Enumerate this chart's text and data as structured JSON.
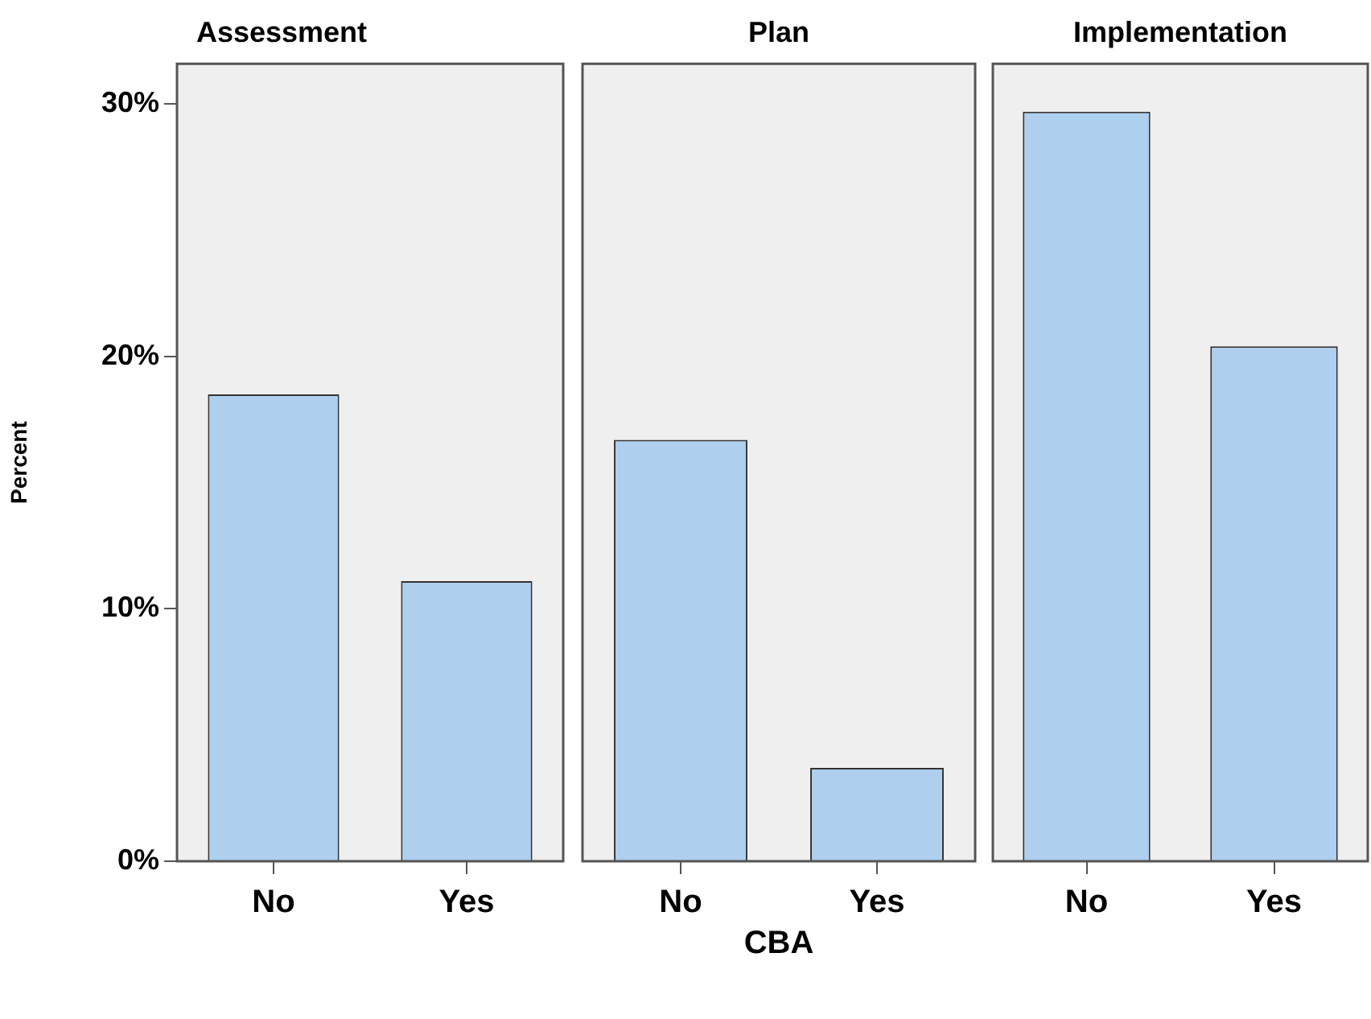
{
  "chart_data": [
    {
      "type": "bar",
      "title": "Assessment",
      "ylabel": "Percent",
      "categories": [
        "No",
        "Yes"
      ],
      "values": [
        18.5,
        11.1
      ],
      "color": "#aecfee",
      "ylim": [
        0,
        31.6
      ],
      "yticks": [
        {
          "value": 0,
          "label": "0%"
        },
        {
          "value": 10,
          "label": "10%"
        },
        {
          "value": 20,
          "label": "20%"
        },
        {
          "value": 30,
          "label": "30%"
        }
      ]
    },
    {
      "type": "bar",
      "title": "Plan",
      "xlabel": "CBA",
      "categories": [
        "No",
        "Yes"
      ],
      "values": [
        16.7,
        3.7
      ],
      "color": "#aecfee",
      "ylim": [
        0,
        31.6
      ],
      "tick_labels": "x"
    },
    {
      "type": "bar",
      "title": "Implementation",
      "categories": [
        "No",
        "Yes"
      ],
      "values": [
        29.7,
        20.4
      ],
      "color": "#aecfee",
      "ylim": [
        0,
        31.6
      ],
      "tick_labels": "x"
    }
  ]
}
